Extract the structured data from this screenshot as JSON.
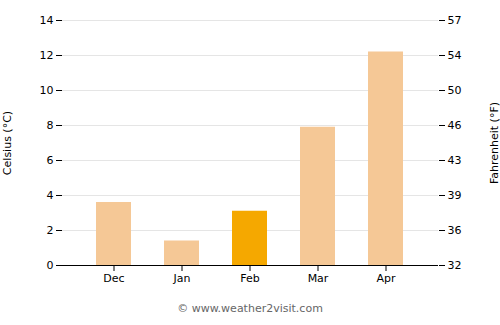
{
  "chart_data": {
    "type": "bar",
    "categories": [
      "Dec",
      "Jan",
      "Feb",
      "Mar",
      "Apr"
    ],
    "values": [
      3.6,
      1.4,
      3.1,
      7.9,
      12.2
    ],
    "colors": [
      "#f5c896",
      "#f5c896",
      "#f5a800",
      "#f5c896",
      "#f5c896"
    ],
    "ylabel": "Celsius (°C)",
    "y2label": "Fahrenheit (°F)",
    "ylim": [
      0,
      14
    ],
    "yticks": [
      0,
      2,
      4,
      6,
      8,
      10,
      12,
      14
    ],
    "y2lim": [
      32,
      57.2
    ],
    "y2ticks": [
      32,
      {
        "value": 35.6,
        "label": "36"
      },
      {
        "value": 39.2,
        "label": "39"
      },
      {
        "value": 42.8,
        "label": "43"
      },
      {
        "value": 46.4,
        "label": "46"
      },
      50,
      {
        "value": 53.6,
        "label": "54"
      },
      {
        "value": 57.2,
        "label": "57"
      }
    ],
    "grid": true,
    "caption": "© www.weather2visit.com"
  }
}
